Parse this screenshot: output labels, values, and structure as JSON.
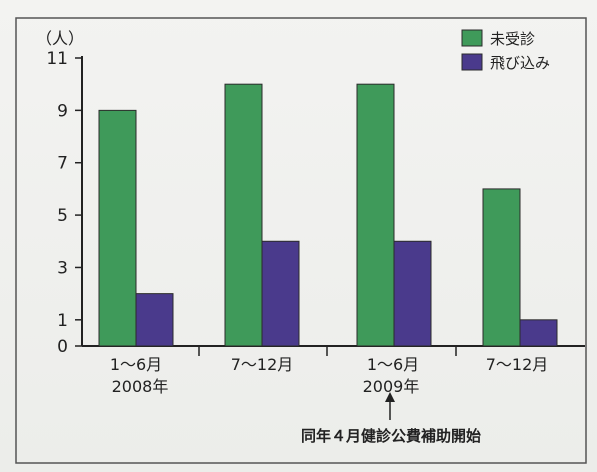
{
  "chart_data": {
    "type": "bar",
    "unit_label": "（人）",
    "categories": [
      "1～6月",
      "7～12月",
      "1～6月",
      "7～12月"
    ],
    "year_labels": [
      "2008年",
      "2009年"
    ],
    "series": [
      {
        "name": "未受診",
        "color": "#3f9a5a",
        "values": [
          9,
          10,
          10,
          6
        ]
      },
      {
        "name": "飛び込み",
        "color": "#4a3a8c",
        "values": [
          2,
          4,
          4,
          1
        ]
      }
    ],
    "yticks": [
      0,
      1,
      3,
      5,
      7,
      9,
      11
    ],
    "ylim": [
      0,
      11
    ],
    "annotation": "同年４月健診公費補助開始",
    "legend_position": "top-right",
    "grid": false
  }
}
